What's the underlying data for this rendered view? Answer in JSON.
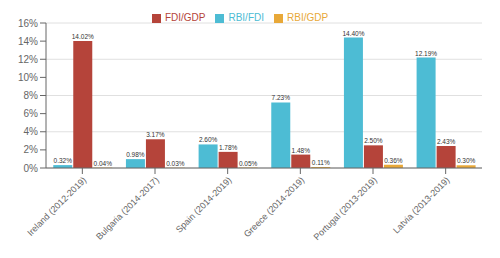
{
  "chart_data": {
    "type": "bar",
    "categories": [
      "Ireland (2012-2019)",
      "Bulgaria (2014-2017)",
      "Spain (2014-2019)",
      "Greece (2014-2019)",
      "Portugal (2013-2019)",
      "Latvia (2013-2019)"
    ],
    "series": [
      {
        "name": "RBI/FDI",
        "color": "#4DBCD4",
        "values": [
          0.32,
          0.98,
          2.6,
          7.23,
          14.4,
          12.19
        ],
        "value_labels": [
          "0.32%",
          "0.98%",
          "2.60%",
          "7.23%",
          "14.40%",
          "12.19%"
        ]
      },
      {
        "name": "FDI/GDP",
        "color": "#B5443A",
        "values": [
          14.02,
          3.17,
          1.78,
          1.48,
          2.5,
          2.43
        ],
        "value_labels": [
          "14.02%",
          "3.17%",
          "1.78%",
          "1.48%",
          "2.50%",
          "2.43%"
        ]
      },
      {
        "name": "RBI/GDP",
        "color": "#E8A838",
        "values": [
          0.04,
          0.03,
          0.05,
          0.11,
          0.36,
          0.3
        ],
        "value_labels": [
          "0.04%",
          "0.03%",
          "0.05%",
          "0.11%",
          "0.36%",
          "0.30%"
        ]
      }
    ],
    "ylim": [
      0,
      16
    ],
    "yticks": [
      {
        "value": 0,
        "label": "0%"
      },
      {
        "value": 2,
        "label": "2%"
      },
      {
        "value": 4,
        "label": "4%"
      },
      {
        "value": 6,
        "label": "6%"
      },
      {
        "value": 8,
        "label": "8%"
      },
      {
        "value": 10,
        "label": "10%"
      },
      {
        "value": 12,
        "label": "12%"
      },
      {
        "value": 14,
        "label": "14%"
      },
      {
        "value": 16,
        "label": "16%"
      }
    ],
    "grid": true,
    "legend": "top",
    "data_labels": true
  }
}
